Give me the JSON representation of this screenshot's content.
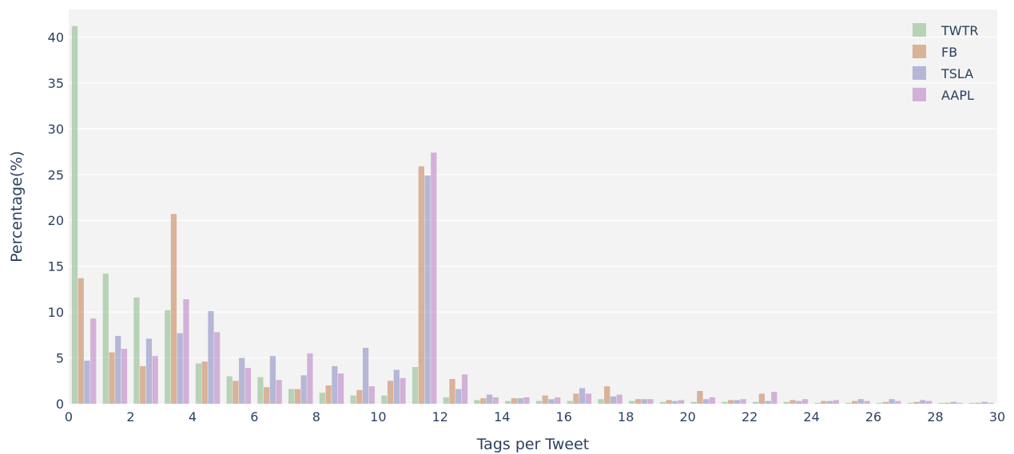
{
  "chart_data": {
    "type": "bar",
    "xlabel": "Tags per Tweet",
    "ylabel": "Percentage(%)",
    "xlim": [
      0,
      30
    ],
    "ylim": [
      0,
      43
    ],
    "x_ticks": [
      "0",
      "2",
      "4",
      "6",
      "8",
      "10",
      "12",
      "14",
      "16",
      "18",
      "20",
      "22",
      "24",
      "26",
      "28",
      "30"
    ],
    "y_ticks": [
      "0",
      "5",
      "10",
      "15",
      "20",
      "25",
      "30",
      "35",
      "40"
    ],
    "grid": true,
    "legend_position": "top-right",
    "bar_opacity": 0.6,
    "x": [
      0,
      1,
      2,
      3,
      4,
      5,
      6,
      7,
      8,
      9,
      10,
      11,
      12,
      13,
      14,
      15,
      16,
      17,
      18,
      19,
      20,
      21,
      22,
      23,
      24,
      25,
      26,
      27,
      28,
      29
    ],
    "series": [
      {
        "name": "TWTR",
        "color": "#8fbc8f",
        "values": [
          41.2,
          14.2,
          11.6,
          10.2,
          4.4,
          3.0,
          2.9,
          1.6,
          1.2,
          0.9,
          0.9,
          4.0,
          0.7,
          0.4,
          0.3,
          0.3,
          0.3,
          0.5,
          0.3,
          0.2,
          0.2,
          0.2,
          0.2,
          0.2,
          0.1,
          0.1,
          0.1,
          0.1,
          0.1,
          0.1
        ]
      },
      {
        "name": "FB",
        "color": "#c8875c",
        "values": [
          13.7,
          5.6,
          4.1,
          20.7,
          4.6,
          2.5,
          1.8,
          1.6,
          2.0,
          1.5,
          2.5,
          25.9,
          2.7,
          0.6,
          0.6,
          0.9,
          1.1,
          1.9,
          0.5,
          0.4,
          1.4,
          0.4,
          1.1,
          0.4,
          0.3,
          0.3,
          0.2,
          0.2,
          0.1,
          0.1
        ]
      },
      {
        "name": "TSLA",
        "color": "#8e8fc4",
        "values": [
          4.7,
          7.4,
          7.1,
          7.7,
          10.1,
          5.0,
          5.2,
          3.1,
          4.1,
          6.1,
          3.7,
          24.9,
          1.6,
          1.0,
          0.6,
          0.5,
          1.7,
          0.8,
          0.5,
          0.3,
          0.5,
          0.4,
          0.3,
          0.3,
          0.3,
          0.5,
          0.5,
          0.4,
          0.2,
          0.2
        ]
      },
      {
        "name": "AAPL",
        "color": "#bd85c7",
        "values": [
          9.3,
          6.0,
          5.2,
          11.4,
          7.8,
          3.9,
          2.6,
          5.5,
          3.3,
          1.9,
          2.8,
          27.4,
          3.2,
          0.7,
          0.7,
          0.7,
          1.1,
          1.0,
          0.5,
          0.4,
          0.7,
          0.5,
          1.3,
          0.5,
          0.4,
          0.3,
          0.3,
          0.3,
          0.1,
          0.1
        ]
      }
    ]
  }
}
